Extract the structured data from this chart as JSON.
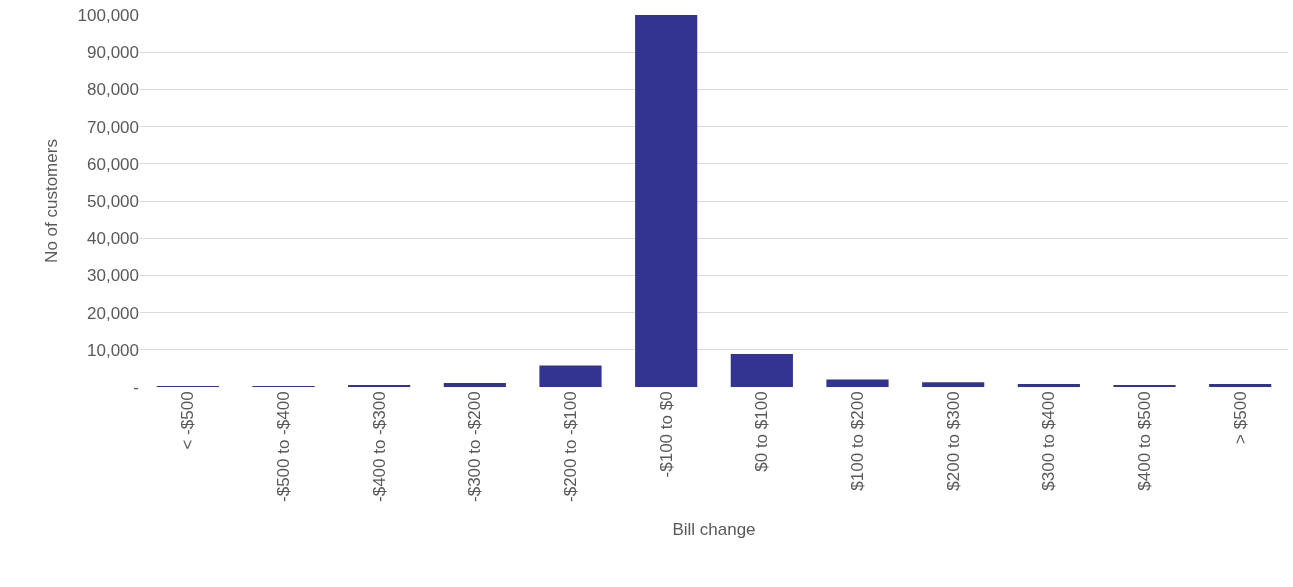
{
  "chart_data": {
    "type": "bar",
    "xlabel": "Bill change",
    "ylabel": "No of customers",
    "categories": [
      "< -$500",
      "-$500 to -$400",
      "-$400 to -$300",
      "-$300 to -$200",
      "-$200 to -$100",
      "-$100 to $0",
      "$0 to $100",
      "$100 to $200",
      "$200 to $300",
      "$300 to $400",
      "$400 to $500",
      "> $500"
    ],
    "values": [
      200,
      100,
      300,
      1100,
      5800,
      100000,
      8900,
      2000,
      1300,
      800,
      500,
      800
    ],
    "color": "#333391",
    "ylim": [
      0,
      100000
    ],
    "yticks": [
      {
        "value": 0,
        "label": "-"
      },
      {
        "value": 10000,
        "label": "10,000"
      },
      {
        "value": 20000,
        "label": "20,000"
      },
      {
        "value": 30000,
        "label": "30,000"
      },
      {
        "value": 40000,
        "label": "40,000"
      },
      {
        "value": 50000,
        "label": "50,000"
      },
      {
        "value": 60000,
        "label": "60,000"
      },
      {
        "value": 70000,
        "label": "70,000"
      },
      {
        "value": 80000,
        "label": "80,000"
      },
      {
        "value": 90000,
        "label": "90,000"
      },
      {
        "value": 100000,
        "label": "100,000"
      }
    ],
    "grid": "y"
  }
}
